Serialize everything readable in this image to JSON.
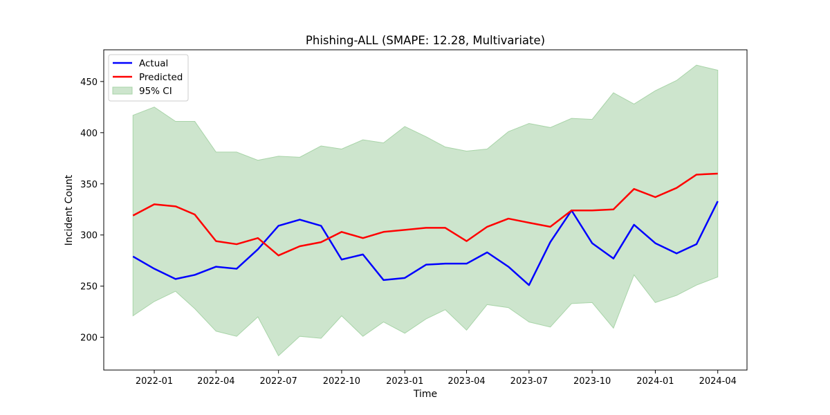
{
  "chart_data": {
    "type": "line",
    "title": "Phishing-ALL (SMAPE: 12.28, Multivariate)",
    "xlabel": "Time",
    "ylabel": "Incident Count",
    "x": [
      "2021-12",
      "2022-01",
      "2022-02",
      "2022-03",
      "2022-04",
      "2022-05",
      "2022-06",
      "2022-07",
      "2022-08",
      "2022-09",
      "2022-10",
      "2022-11",
      "2022-12",
      "2023-01",
      "2023-02",
      "2023-03",
      "2023-04",
      "2023-05",
      "2023-06",
      "2023-07",
      "2023-08",
      "2023-09",
      "2023-10",
      "2023-11",
      "2023-12",
      "2024-01",
      "2024-02",
      "2024-03",
      "2024-04"
    ],
    "x_tick_labels": [
      "2022-01",
      "2022-04",
      "2022-07",
      "2022-10",
      "2023-01",
      "2023-04",
      "2023-07",
      "2023-10",
      "2024-01",
      "2024-04"
    ],
    "y_ticks": [
      200,
      250,
      300,
      350,
      400,
      450
    ],
    "ylim": [
      168,
      481
    ],
    "series": [
      {
        "name": "Actual",
        "color": "#0000ff",
        "values": [
          279,
          267,
          257,
          261,
          269,
          267,
          286,
          309,
          315,
          309,
          276,
          281,
          256,
          258,
          271,
          272,
          272,
          283,
          269,
          251,
          293,
          324,
          292,
          277,
          310,
          292,
          282,
          291,
          333
        ]
      },
      {
        "name": "Predicted",
        "color": "#ff0000",
        "values": [
          319,
          330,
          328,
          320,
          294,
          291,
          297,
          280,
          289,
          293,
          303,
          297,
          303,
          305,
          307,
          307,
          294,
          308,
          316,
          312,
          308,
          324,
          324,
          325,
          345,
          337,
          346,
          359,
          360
        ]
      }
    ],
    "confidence_interval": {
      "name": "95% CI",
      "color": "#cde5cd",
      "edge_color": "#a8d4a8",
      "upper": [
        417,
        425,
        411,
        411,
        381,
        381,
        373,
        377,
        376,
        387,
        384,
        393,
        390,
        406,
        396,
        386,
        382,
        384,
        401,
        409,
        405,
        414,
        413,
        439,
        428,
        441,
        451,
        466,
        461
      ],
      "lower": [
        221,
        235,
        245,
        228,
        206,
        201,
        220,
        182,
        201,
        199,
        221,
        201,
        215,
        204,
        218,
        227,
        207,
        232,
        229,
        215,
        210,
        233,
        234,
        209,
        261,
        234,
        241,
        251,
        259
      ]
    },
    "legend_position": "top-left",
    "grid": false
  }
}
